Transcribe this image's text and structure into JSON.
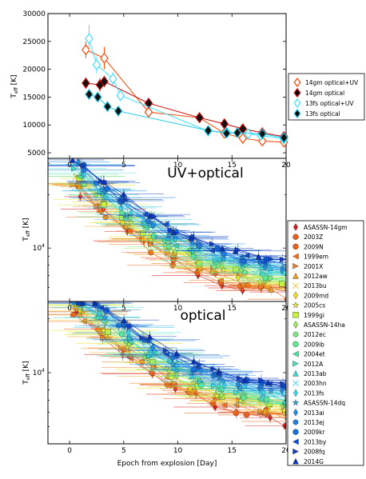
{
  "chart_data": [
    {
      "type": "line",
      "panel": "top",
      "ylabel": "T_eff [K]",
      "xlim": [
        -2,
        20
      ],
      "ylim": [
        4000,
        30000
      ],
      "yticks": [
        5000,
        10000,
        15000,
        20000,
        25000,
        30000
      ],
      "xticks": [
        0,
        5,
        10,
        15,
        20
      ],
      "legend_position": "right",
      "series": [
        {
          "name": "14gm optical+UV",
          "color": "#ff4500",
          "marker": "diamond-open",
          "x": [
            1.5,
            3.2,
            7.3,
            12.0,
            14.3,
            16.0,
            17.8,
            19.8
          ],
          "y": [
            23500,
            22000,
            12300,
            11300,
            8500,
            7600,
            7100,
            6900
          ],
          "yerr": [
            1500,
            2000,
            700,
            700,
            600,
            500,
            500,
            500
          ]
        },
        {
          "name": "14gm optical",
          "color": "#cc0000",
          "marker": "diamond-filled",
          "x": [
            1.5,
            2.8,
            3.2,
            7.3,
            12.0,
            14.3,
            16.0,
            17.8,
            19.8
          ],
          "y": [
            17500,
            17200,
            17800,
            13900,
            11300,
            10200,
            9300,
            8600,
            7900
          ],
          "yerr": [
            1000,
            1200,
            1000,
            900,
            800,
            700,
            700,
            600,
            500
          ]
        },
        {
          "name": "13fs optical+UV",
          "color": "#40e0ff",
          "marker": "diamond-open",
          "x": [
            1.8,
            2.5,
            4.0,
            4.7,
            12.8,
            14.5,
            16.5,
            17.7,
            19.8
          ],
          "y": [
            25500,
            20800,
            18300,
            15300,
            8900,
            8700,
            8400,
            8100,
            7500
          ],
          "yerr": [
            2500,
            1500,
            1200,
            1000,
            600,
            500,
            500,
            500,
            500
          ]
        },
        {
          "name": "13fs optical",
          "color": "#1ac8e8",
          "marker": "diamond-filled",
          "x": [
            1.8,
            2.6,
            3.5,
            4.5,
            12.8,
            14.5,
            15.5,
            17.8,
            19.8
          ],
          "y": [
            15500,
            15000,
            13300,
            12500,
            9000,
            8500,
            8600,
            8400,
            7700
          ],
          "yerr": [
            1000,
            900,
            800,
            700,
            600,
            500,
            500,
            500,
            500
          ]
        }
      ],
      "legend": [
        "14gm optical+UV",
        "14gm optical",
        "13fs optical+UV",
        "13fs optical"
      ]
    },
    {
      "type": "scatter",
      "panel": "middle",
      "title": "UV+optical",
      "ylabel": "T_eff [K]",
      "yscale": "log",
      "xlim": [
        -2,
        20
      ],
      "ylim": [
        5000,
        32000
      ],
      "yticks_labeled": [
        {
          "value": 10000,
          "label": "10^4"
        }
      ],
      "xticks": [
        0,
        5,
        10,
        15,
        20
      ],
      "legend_position": "right"
    },
    {
      "type": "scatter",
      "panel": "bottom",
      "title": "optical",
      "ylabel": "T_eff [K]",
      "xlabel": "Epoch from explosion [Day]",
      "yscale": "log",
      "xlim": [
        -2,
        20
      ],
      "ylim": [
        4000,
        25000
      ],
      "yticks_labeled": [
        {
          "value": 10000,
          "label": "10^4"
        }
      ],
      "xticks": [
        0,
        5,
        10,
        15,
        20
      ],
      "legend": [
        {
          "name": "ASASSN-14gm",
          "color": "#d62020",
          "marker": "diamond"
        },
        {
          "name": "2003Z",
          "color": "#e8601c",
          "marker": "circle"
        },
        {
          "name": "2009N",
          "color": "#e8601c",
          "marker": "circle"
        },
        {
          "name": "1999em",
          "color": "#f07020",
          "marker": "triangle-left"
        },
        {
          "name": "2001X",
          "color": "#f08030",
          "marker": "triangle-right"
        },
        {
          "name": "2012aw",
          "color": "#f0a020",
          "marker": "triangle-up"
        },
        {
          "name": "2013bu",
          "color": "#f0c030",
          "marker": "x"
        },
        {
          "name": "2009md",
          "color": "#f0e020",
          "marker": "diamond"
        },
        {
          "name": "2005cs",
          "color": "#f0f040",
          "marker": "star"
        },
        {
          "name": "1999gi",
          "color": "#c8f040",
          "marker": "square"
        },
        {
          "name": "ASASSN-14ha",
          "color": "#a0e860",
          "marker": "diamond"
        },
        {
          "name": "2012ec",
          "color": "#80e880",
          "marker": "hexagon"
        },
        {
          "name": "2009ib",
          "color": "#60e890",
          "marker": "circle"
        },
        {
          "name": "2004et",
          "color": "#50e0a0",
          "marker": "triangle-left"
        },
        {
          "name": "2012A",
          "color": "#40e0c0",
          "marker": "triangle-right"
        },
        {
          "name": "2013ab",
          "color": "#40d8d8",
          "marker": "triangle-up"
        },
        {
          "name": "2003hn",
          "color": "#40c8e8",
          "marker": "x"
        },
        {
          "name": "2013fs",
          "color": "#40d8f0",
          "marker": "diamond"
        },
        {
          "name": "ASASSN-14dq",
          "color": "#30a8e8",
          "marker": "star"
        },
        {
          "name": "2013ai",
          "color": "#2090e0",
          "marker": "diamond"
        },
        {
          "name": "2013ej",
          "color": "#2080e0",
          "marker": "hexagon"
        },
        {
          "name": "2009kr",
          "color": "#1870d8",
          "marker": "circle"
        },
        {
          "name": "2013by",
          "color": "#1050d0",
          "marker": "triangle-left"
        },
        {
          "name": "2008fq",
          "color": "#1040c8",
          "marker": "triangle-right"
        },
        {
          "name": "2014G",
          "color": "#0830b8",
          "marker": "triangle-up"
        }
      ]
    }
  ]
}
